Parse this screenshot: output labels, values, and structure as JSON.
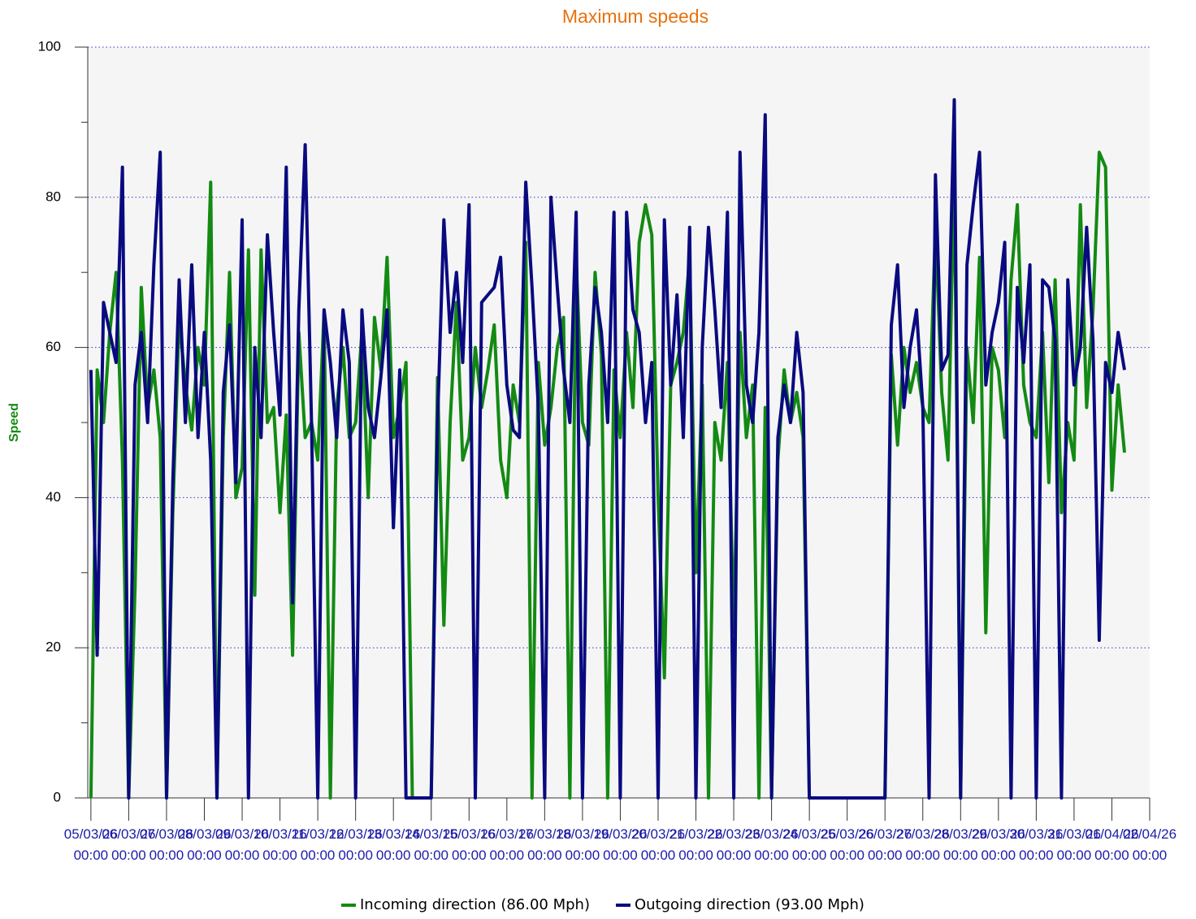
{
  "chart_data": {
    "type": "line",
    "title": "Maximum speeds",
    "y_label": "Speed",
    "x": [
      "05/03/26 00:00",
      "05/03/26 04:00",
      "05/03/26 08:00",
      "05/03/26 12:00",
      "05/03/26 16:00",
      "05/03/26 20:00",
      "06/03/26 00:00",
      "06/03/26 04:00",
      "06/03/26 08:00",
      "06/03/26 12:00",
      "06/03/26 16:00",
      "06/03/26 20:00",
      "07/03/26 00:00",
      "07/03/26 04:00",
      "07/03/26 08:00",
      "07/03/26 12:00",
      "07/03/26 16:00",
      "07/03/26 20:00",
      "08/03/26 00:00",
      "08/03/26 04:00",
      "08/03/26 08:00",
      "08/03/26 12:00",
      "08/03/26 16:00",
      "08/03/26 20:00",
      "09/03/26 00:00",
      "09/03/26 04:00",
      "09/03/26 08:00",
      "09/03/26 12:00",
      "09/03/26 16:00",
      "09/03/26 20:00",
      "10/03/26 00:00",
      "10/03/26 04:00",
      "10/03/26 08:00",
      "10/03/26 12:00",
      "10/03/26 16:00",
      "10/03/26 20:00",
      "11/03/26 00:00",
      "11/03/26 04:00",
      "11/03/26 08:00",
      "11/03/26 12:00",
      "11/03/26 16:00",
      "11/03/26 20:00",
      "12/03/26 00:00",
      "12/03/26 04:00",
      "12/03/26 08:00",
      "12/03/26 12:00",
      "12/03/26 16:00",
      "12/03/26 20:00",
      "13/03/26 00:00",
      "13/03/26 04:00",
      "13/03/26 08:00",
      "13/03/26 12:00",
      "13/03/26 16:00",
      "13/03/26 20:00",
      "14/03/26 00:00",
      "14/03/26 04:00",
      "14/03/26 08:00",
      "14/03/26 12:00",
      "14/03/26 16:00",
      "14/03/26 20:00",
      "15/03/26 00:00",
      "15/03/26 04:00",
      "15/03/26 08:00",
      "15/03/26 12:00",
      "15/03/26 16:00",
      "15/03/26 20:00",
      "16/03/26 00:00",
      "16/03/26 04:00",
      "16/03/26 08:00",
      "16/03/26 12:00",
      "16/03/26 16:00",
      "16/03/26 20:00",
      "17/03/26 00:00",
      "17/03/26 04:00",
      "17/03/26 08:00",
      "17/03/26 12:00",
      "17/03/26 16:00",
      "17/03/26 20:00",
      "18/03/26 00:00",
      "18/03/26 04:00",
      "18/03/26 08:00",
      "18/03/26 12:00",
      "18/03/26 16:00",
      "18/03/26 20:00",
      "19/03/26 00:00",
      "19/03/26 04:00",
      "19/03/26 08:00",
      "19/03/26 12:00",
      "19/03/26 16:00",
      "19/03/26 20:00",
      "20/03/26 00:00",
      "20/03/26 04:00",
      "20/03/26 08:00",
      "20/03/26 12:00",
      "20/03/26 16:00",
      "20/03/26 20:00",
      "21/03/26 00:00",
      "21/03/26 04:00",
      "21/03/26 08:00",
      "21/03/26 12:00",
      "21/03/26 16:00",
      "21/03/26 20:00",
      "22/03/26 00:00",
      "22/03/26 04:00",
      "22/03/26 08:00",
      "22/03/26 12:00",
      "22/03/26 16:00",
      "22/03/26 20:00",
      "23/03/26 00:00",
      "23/03/26 04:00",
      "23/03/26 08:00",
      "23/03/26 12:00",
      "23/03/26 16:00",
      "23/03/26 20:00",
      "24/03/26 00:00",
      "24/03/26 04:00",
      "24/03/26 08:00",
      "24/03/26 12:00",
      "24/03/26 16:00",
      "24/03/26 20:00",
      "25/03/26 00:00",
      "25/03/26 04:00",
      "25/03/26 08:00",
      "25/03/26 12:00",
      "25/03/26 16:00",
      "25/03/26 20:00",
      "26/03/26 00:00",
      "26/03/26 04:00",
      "26/03/26 08:00",
      "26/03/26 12:00",
      "26/03/26 16:00",
      "26/03/26 20:00",
      "27/03/26 00:00",
      "27/03/26 04:00",
      "27/03/26 08:00",
      "27/03/26 12:00",
      "27/03/26 16:00",
      "27/03/26 20:00",
      "28/03/26 00:00",
      "28/03/26 04:00",
      "28/03/26 08:00",
      "28/03/26 12:00",
      "28/03/26 16:00",
      "28/03/26 20:00",
      "29/03/26 00:00",
      "29/03/26 04:00",
      "29/03/26 08:00",
      "29/03/26 12:00",
      "29/03/26 16:00",
      "29/03/26 20:00",
      "30/03/26 00:00",
      "30/03/26 04:00",
      "30/03/26 08:00",
      "30/03/26 12:00",
      "30/03/26 16:00",
      "30/03/26 20:00",
      "31/03/26 00:00",
      "31/03/26 04:00",
      "31/03/26 08:00",
      "31/03/26 12:00",
      "31/03/26 16:00",
      "31/03/26 20:00",
      "01/04/26 00:00",
      "01/04/26 04:00",
      "01/04/26 08:00"
    ],
    "series": [
      {
        "name": "Incoming direction (86.00 Mph)",
        "color": "#138a13",
        "values": [
          0,
          57,
          50,
          62,
          70,
          45,
          0,
          28,
          68,
          52,
          57,
          48,
          0,
          38,
          64,
          55,
          49,
          60,
          55,
          82,
          0,
          48,
          70,
          40,
          44,
          73,
          27,
          73,
          50,
          52,
          38,
          51,
          19,
          62,
          48,
          50,
          45,
          65,
          0,
          52,
          60,
          48,
          50,
          62,
          40,
          64,
          57,
          72,
          48,
          52,
          58,
          0,
          0,
          0,
          0,
          56,
          23,
          50,
          66,
          45,
          48,
          60,
          52,
          57,
          63,
          45,
          40,
          55,
          50,
          74,
          0,
          58,
          47,
          52,
          60,
          64,
          0,
          72,
          50,
          47,
          70,
          59,
          0,
          57,
          48,
          62,
          52,
          74,
          79,
          75,
          40,
          16,
          55,
          58,
          62,
          72,
          30,
          55,
          0,
          50,
          45,
          58,
          22,
          62,
          48,
          55,
          0,
          52,
          0,
          45,
          57,
          50,
          54,
          48,
          0,
          0,
          0,
          0,
          0,
          0,
          0,
          0,
          0,
          0,
          0,
          0,
          0,
          59,
          47,
          60,
          54,
          58,
          52,
          50,
          76,
          54,
          45,
          84,
          0,
          60,
          50,
          72,
          22,
          60,
          57,
          48,
          69,
          79,
          55,
          50,
          48,
          62,
          42,
          69,
          38,
          50,
          45,
          79,
          52,
          65,
          86,
          84,
          41,
          55,
          46
        ]
      },
      {
        "name": "Outgoing direction (93.00 Mph)",
        "color": "#0a0a80",
        "values": [
          57,
          19,
          66,
          62,
          58,
          84,
          0,
          55,
          62,
          50,
          71,
          86,
          0,
          42,
          69,
          50,
          71,
          48,
          62,
          45,
          0,
          54,
          63,
          42,
          77,
          0,
          60,
          48,
          75,
          62,
          51,
          84,
          26,
          65,
          87,
          50,
          0,
          65,
          58,
          48,
          65,
          58,
          0,
          65,
          52,
          48,
          56,
          65,
          36,
          57,
          0,
          0,
          0,
          0,
          0,
          50,
          77,
          62,
          70,
          58,
          79,
          0,
          66,
          67,
          68,
          72,
          55,
          49,
          48,
          82,
          68,
          52,
          0,
          80,
          68,
          57,
          50,
          78,
          0,
          55,
          68,
          62,
          50,
          78,
          0,
          78,
          65,
          62,
          50,
          58,
          0,
          77,
          55,
          67,
          48,
          76,
          0,
          60,
          76,
          65,
          52,
          78,
          0,
          86,
          55,
          50,
          62,
          91,
          0,
          48,
          55,
          50,
          62,
          54,
          0,
          0,
          0,
          0,
          0,
          0,
          0,
          0,
          0,
          0,
          0,
          0,
          0,
          63,
          71,
          52,
          60,
          65,
          52,
          0,
          83,
          57,
          59,
          93,
          0,
          71,
          79,
          86,
          55,
          62,
          66,
          74,
          0,
          68,
          58,
          71,
          0,
          69,
          68,
          61,
          0,
          69,
          55,
          60,
          76,
          61,
          21,
          58,
          54,
          62,
          57
        ]
      }
    ],
    "xlim": [
      "04/03/26 22:00",
      "02/04/26 00:00"
    ],
    "xticks": [
      "05/03/26 00:00",
      "06/03/26 00:00",
      "07/03/26 00:00",
      "08/03/26 00:00",
      "09/03/26 00:00",
      "10/03/26 00:00",
      "11/03/26 00:00",
      "12/03/26 00:00",
      "13/03/26 00:00",
      "14/03/26 00:00",
      "15/03/26 00:00",
      "16/03/26 00:00",
      "17/03/26 00:00",
      "18/03/26 00:00",
      "19/03/26 00:00",
      "20/03/26 00:00",
      "21/03/26 00:00",
      "22/03/26 00:00",
      "23/03/26 00:00",
      "24/03/26 00:00",
      "25/03/26 00:00",
      "26/03/26 00:00",
      "27/03/26 00:00",
      "28/03/26 00:00",
      "29/03/26 00:00",
      "30/03/26 00:00",
      "31/03/26 00:00",
      "01/04/26 00:00",
      "02/04/26 00:00"
    ],
    "ylim": [
      0,
      100
    ],
    "yticks": [
      0,
      20,
      40,
      60,
      80,
      100
    ],
    "yminorticks": [
      10,
      30,
      50,
      70,
      90
    ],
    "grid": true,
    "legend": "bottom"
  }
}
